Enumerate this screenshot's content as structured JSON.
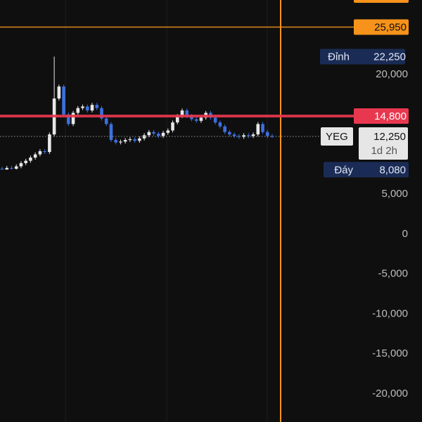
{
  "chart_data": {
    "type": "candlestick",
    "ylim": [
      -23524,
      29339
    ],
    "yticks": [
      {
        "value": 20000,
        "label": "20,000"
      },
      {
        "value": 5000,
        "label": "5,000"
      },
      0,
      {
        "value": -5000,
        "label": "-5,000"
      },
      {
        "value": -10000,
        "label": "-10,000"
      },
      {
        "value": -15000,
        "label": "-15,000"
      },
      {
        "value": -20000,
        "label": "-20,000"
      }
    ],
    "up_color": "#e8e8e8",
    "down_color": "#3d6fe0",
    "open": [
      8200,
      8100,
      8300,
      8200,
      8500,
      8900,
      9200,
      9600,
      10000,
      10400,
      10300,
      12500,
      17000,
      18500,
      15000,
      13800,
      15200,
      15800,
      16000,
      15500,
      16200,
      15800,
      14500,
      13800,
      11800,
      11500,
      11600,
      11800,
      11900,
      11700,
      12000,
      12400,
      12800,
      12600,
      12300,
      12700,
      13000,
      14000,
      14800,
      15500,
      14800,
      14400,
      14200,
      14600,
      15200,
      14600,
      14000,
      13500,
      12800,
      12500,
      12300,
      12200,
      12400,
      12300,
      12500,
      13800,
      12800,
      12300
    ],
    "high": [
      8450,
      8550,
      8550,
      8750,
      9150,
      9450,
      9850,
      10250,
      10650,
      10650,
      12750,
      22250,
      18750,
      18750,
      15250,
      15450,
      16050,
      16250,
      16250,
      16450,
      16450,
      16050,
      14750,
      14050,
      12050,
      11850,
      12050,
      12150,
      12150,
      12250,
      12650,
      13050,
      13050,
      12850,
      12950,
      13250,
      14250,
      15050,
      15750,
      15750,
      15050,
      14650,
      14850,
      15450,
      15450,
      14850,
      14250,
      13750,
      13050,
      12750,
      12550,
      12650,
      12650,
      12750,
      14050,
      14050,
      13050,
      12550
    ],
    "low": [
      8080,
      8090,
      8100,
      8100,
      8250,
      8650,
      8950,
      9350,
      9750,
      10050,
      10050,
      12250,
      16750,
      14750,
      13550,
      13550,
      14950,
      15550,
      15250,
      15250,
      15550,
      14250,
      13550,
      11550,
      11250,
      11250,
      11350,
      11550,
      11450,
      11450,
      11750,
      12150,
      12350,
      12050,
      12050,
      12450,
      12750,
      13750,
      14550,
      14550,
      14150,
      13950,
      13950,
      14350,
      14350,
      13750,
      13250,
      12550,
      12250,
      12050,
      11950,
      11950,
      12050,
      12050,
      12250,
      12550,
      12050,
      12050
    ],
    "close": [
      8100,
      8300,
      8200,
      8500,
      8900,
      9200,
      9600,
      10000,
      10400,
      10300,
      12500,
      17000,
      18500,
      15000,
      13800,
      15200,
      15800,
      16000,
      15500,
      16200,
      15800,
      14500,
      13800,
      11800,
      11500,
      11600,
      11800,
      11900,
      11700,
      12000,
      12400,
      12800,
      12600,
      12300,
      12700,
      13000,
      14000,
      14800,
      15500,
      14800,
      14400,
      14200,
      14600,
      15200,
      14600,
      14000,
      13500,
      12800,
      12500,
      12300,
      12200,
      12400,
      12300,
      12500,
      13800,
      12800,
      12300,
      12250
    ],
    "price_lines": [
      {
        "value": 25950,
        "label": "25,950",
        "color": "#f7931a"
      },
      {
        "value": 14800,
        "label": "14,800",
        "color": "#e8384f"
      }
    ],
    "last_price": {
      "symbol": "YEG",
      "value": 12250,
      "label": "12,250",
      "countdown": "1d 2h"
    },
    "high_marker": {
      "name": "Đỉnh",
      "value": 22250,
      "label": "22,250"
    },
    "low_marker": {
      "name": "Đáy",
      "value": 8080,
      "label": "8,080"
    }
  }
}
